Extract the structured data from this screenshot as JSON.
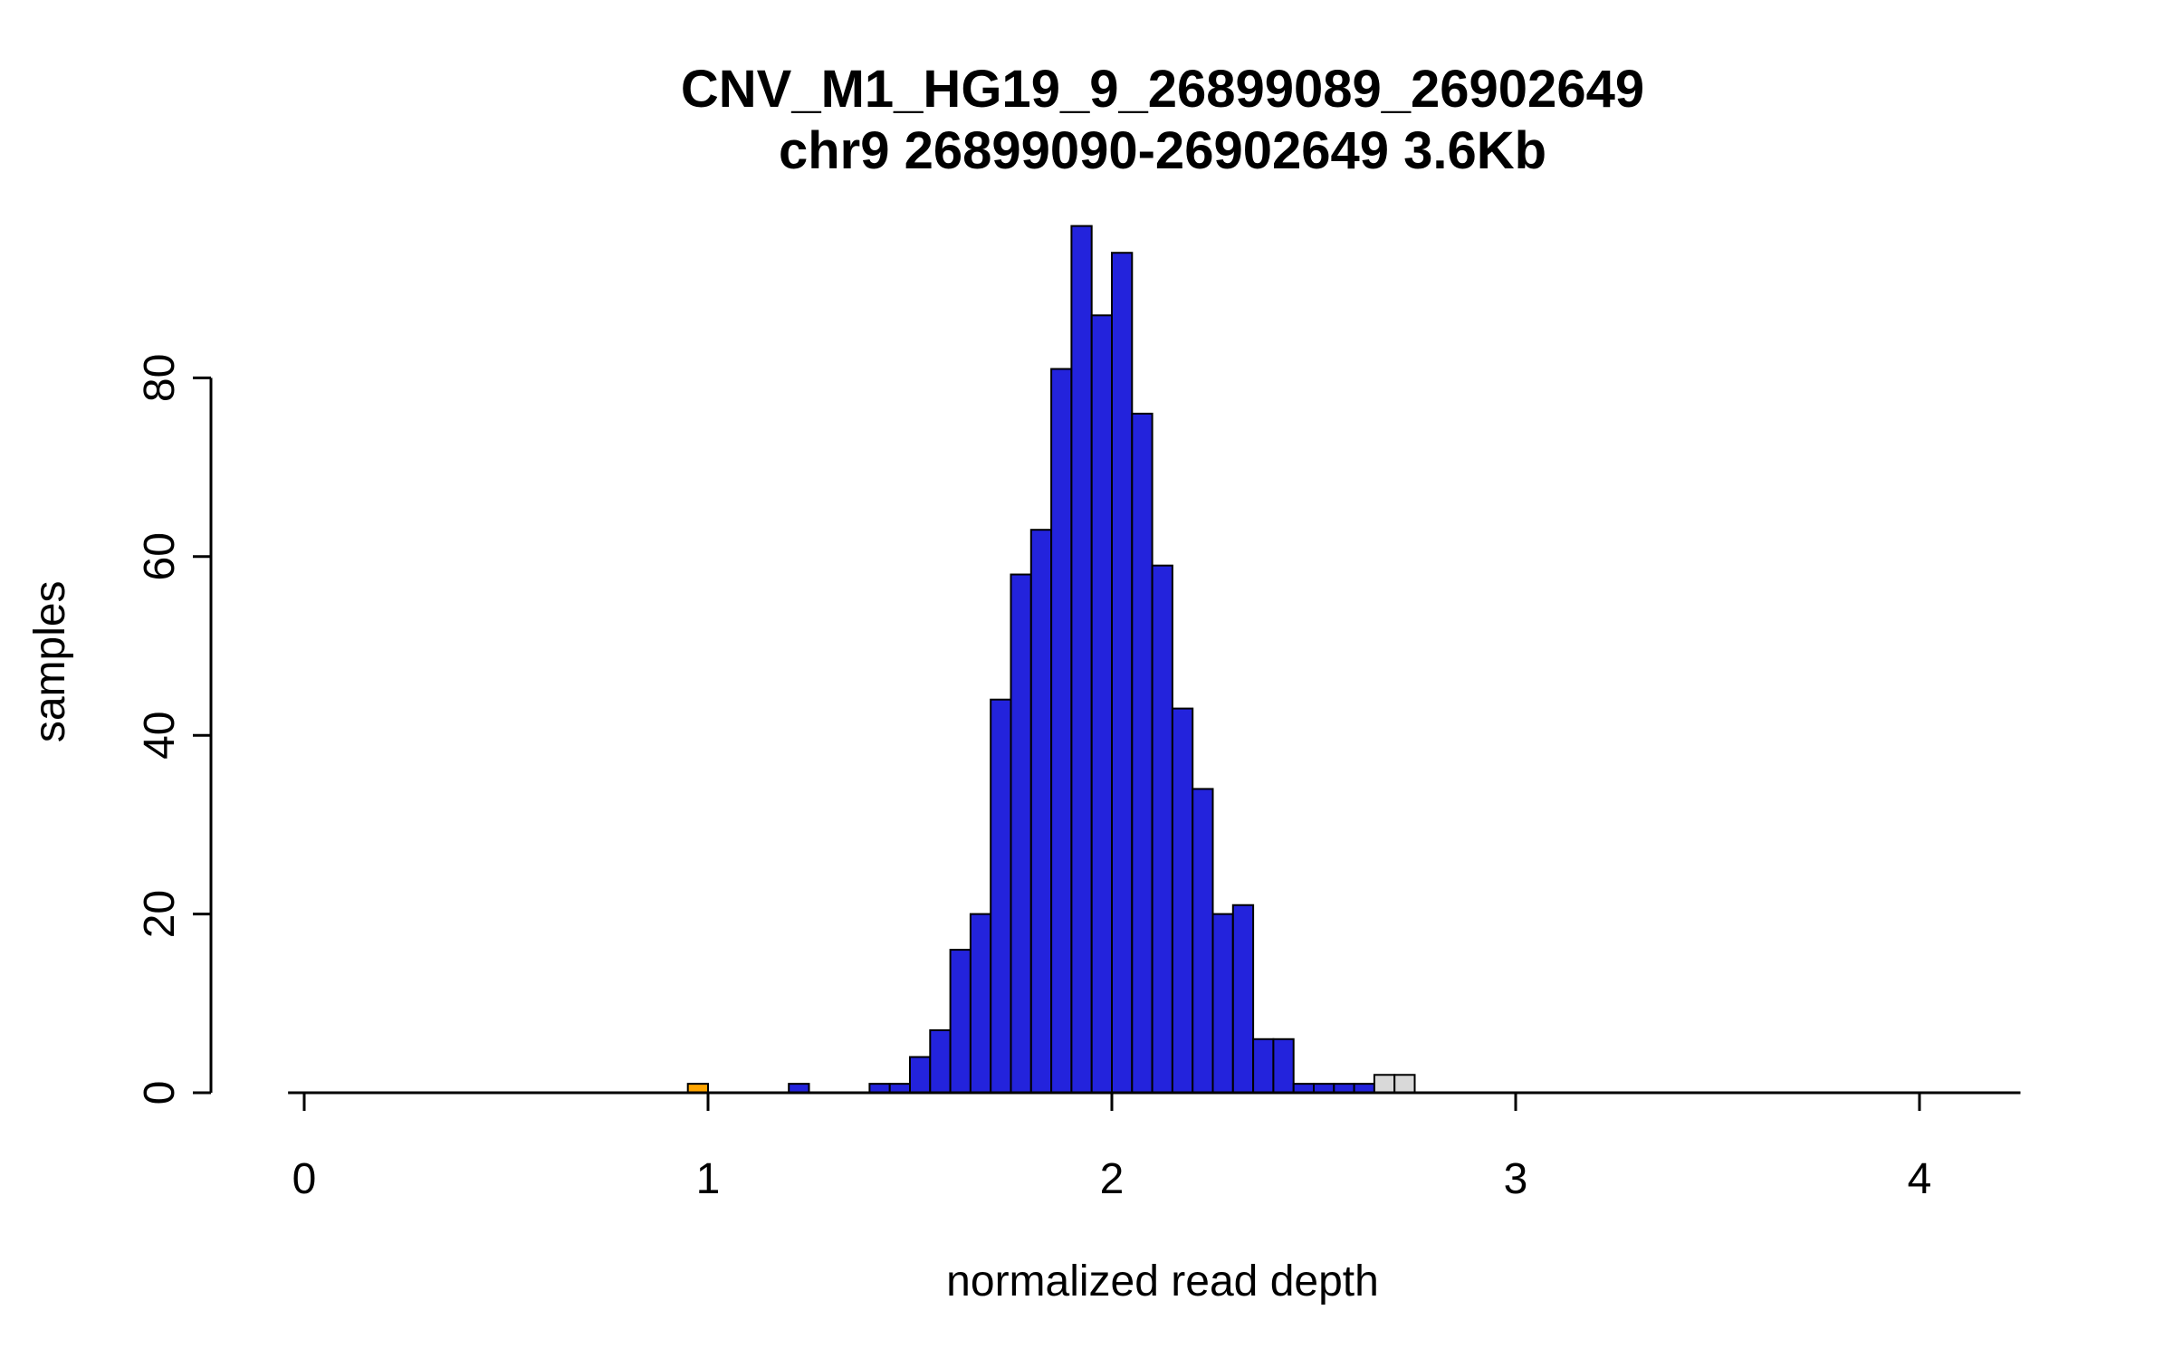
{
  "chart_data": {
    "type": "bar",
    "subtype": "histogram",
    "title": "CNV_M1_HG19_9_26899089_26902649",
    "subtitle": "chr9 26899090-26902649 3.6Kb",
    "xlabel": "normalized read depth",
    "ylabel": "samples",
    "x_ticks": [
      0,
      1,
      2,
      3,
      4
    ],
    "y_ticks": [
      0,
      20,
      40,
      60,
      80
    ],
    "x_axis_span": [
      -0.04,
      4.25
    ],
    "y_axis_span": [
      0,
      80
    ],
    "ylim": [
      0,
      100
    ],
    "bin_width": 0.05,
    "grid": "off",
    "legend": "none",
    "colors": {
      "blue": "#2323DC",
      "orange": "#FFA500",
      "gray": "#D9D9D9",
      "axis": "#000000",
      "bar_border": "#000000",
      "background": "#FFFFFF"
    },
    "bins": [
      {
        "x": 0.95,
        "h": 1,
        "color": "orange"
      },
      {
        "x": 1.2,
        "h": 1,
        "color": "blue"
      },
      {
        "x": 1.4,
        "h": 1,
        "color": "blue"
      },
      {
        "x": 1.45,
        "h": 1,
        "color": "blue"
      },
      {
        "x": 1.5,
        "h": 4,
        "color": "blue"
      },
      {
        "x": 1.55,
        "h": 7,
        "color": "blue"
      },
      {
        "x": 1.6,
        "h": 16,
        "color": "blue"
      },
      {
        "x": 1.65,
        "h": 20,
        "color": "blue"
      },
      {
        "x": 1.7,
        "h": 44,
        "color": "blue"
      },
      {
        "x": 1.75,
        "h": 58,
        "color": "blue"
      },
      {
        "x": 1.8,
        "h": 63,
        "color": "blue"
      },
      {
        "x": 1.85,
        "h": 81,
        "color": "blue"
      },
      {
        "x": 1.9,
        "h": 97,
        "color": "blue"
      },
      {
        "x": 1.95,
        "h": 87,
        "color": "blue"
      },
      {
        "x": 2.0,
        "h": 94,
        "color": "blue"
      },
      {
        "x": 2.05,
        "h": 76,
        "color": "blue"
      },
      {
        "x": 2.1,
        "h": 59,
        "color": "blue"
      },
      {
        "x": 2.15,
        "h": 43,
        "color": "blue"
      },
      {
        "x": 2.2,
        "h": 34,
        "color": "blue"
      },
      {
        "x": 2.25,
        "h": 20,
        "color": "blue"
      },
      {
        "x": 2.3,
        "h": 21,
        "color": "blue"
      },
      {
        "x": 2.35,
        "h": 6,
        "color": "blue"
      },
      {
        "x": 2.4,
        "h": 6,
        "color": "blue"
      },
      {
        "x": 2.45,
        "h": 1,
        "color": "blue"
      },
      {
        "x": 2.5,
        "h": 1,
        "color": "blue"
      },
      {
        "x": 2.55,
        "h": 1,
        "color": "blue"
      },
      {
        "x": 2.6,
        "h": 1,
        "color": "blue"
      },
      {
        "x": 2.65,
        "h": 2,
        "color": "gray"
      },
      {
        "x": 2.7,
        "h": 2,
        "color": "gray"
      }
    ]
  }
}
